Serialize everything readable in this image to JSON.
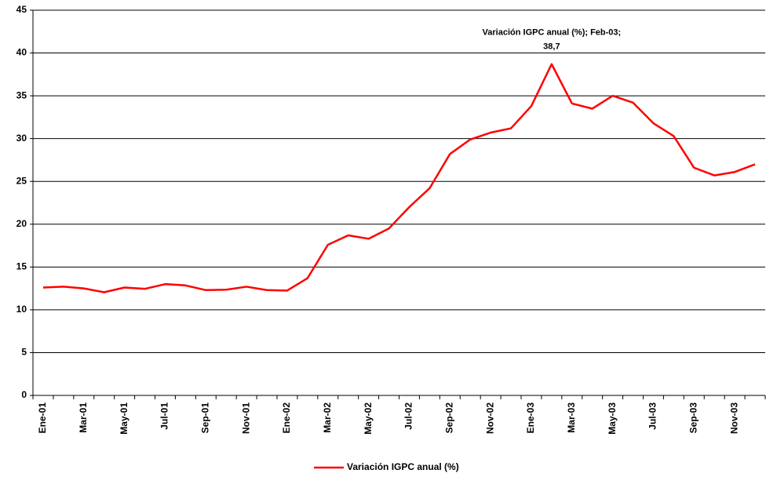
{
  "chart_data": {
    "type": "line",
    "categories": [
      "Ene-01",
      null,
      "Mar-01",
      null,
      "May-01",
      null,
      "Jul-01",
      null,
      "Sep-01",
      null,
      "Nov-01",
      null,
      "Ene-02",
      null,
      "Mar-02",
      null,
      "May-02",
      null,
      "Jul-02",
      null,
      "Sep-02",
      null,
      "Nov-02",
      null,
      "Ene-03",
      null,
      "Mar-03",
      null,
      "May-03",
      null,
      "Jul-03",
      null,
      "Sep-03",
      null,
      "Nov-03",
      null
    ],
    "series": [
      {
        "name": "Variación IGPC anual (%)",
        "color": "#ff0000",
        "values": [
          12.6,
          12.7,
          12.5,
          12.05,
          12.6,
          12.45,
          13.0,
          12.85,
          12.3,
          12.35,
          12.7,
          12.3,
          12.25,
          13.7,
          17.6,
          18.7,
          18.3,
          19.5,
          22.0,
          24.2,
          28.2,
          29.9,
          30.7,
          31.2,
          33.8,
          38.7,
          34.1,
          33.5,
          35.0,
          34.2,
          31.8,
          30.3,
          26.6,
          25.7,
          26.1,
          27.0
        ],
        "value_labels": [
          null,
          null,
          null,
          null,
          null,
          null,
          null,
          null,
          null,
          null,
          null,
          null,
          null,
          null,
          null,
          null,
          null,
          null,
          null,
          null,
          null,
          null,
          null,
          null,
          null,
          "38,7",
          null,
          null,
          null,
          null,
          null,
          null,
          null,
          null,
          null,
          null
        ]
      }
    ],
    "annotation": "Variación IGPC anual (%); Feb-03;",
    "ylim": [
      0,
      45
    ],
    "yticks": [
      0,
      5,
      10,
      15,
      20,
      25,
      30,
      35,
      40,
      45
    ],
    "grid": true,
    "legend": "bottom"
  }
}
